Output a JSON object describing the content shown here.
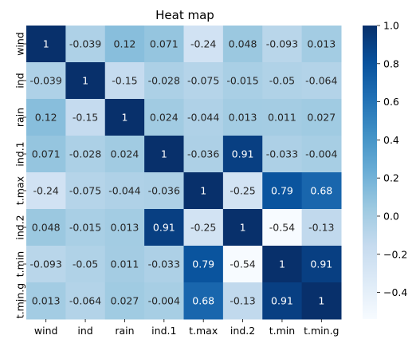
{
  "chart_data": {
    "type": "heatmap",
    "title": "Heat map",
    "xlabel": "",
    "ylabel": "",
    "x_categories": [
      "wind",
      "ind",
      "rain",
      "ind.1",
      "t.max",
      "ind.2",
      "t.min",
      "t.min.g"
    ],
    "y_categories": [
      "wind",
      "ind",
      "rain",
      "ind.1",
      "t.max",
      "ind.2",
      "t.min",
      "t.min.g"
    ],
    "values": [
      [
        1,
        -0.039,
        0.12,
        0.071,
        -0.24,
        0.048,
        -0.093,
        0.013
      ],
      [
        -0.039,
        1,
        -0.15,
        -0.028,
        -0.075,
        -0.015,
        -0.05,
        -0.064
      ],
      [
        0.12,
        -0.15,
        1,
        0.024,
        -0.044,
        0.013,
        0.011,
        0.027
      ],
      [
        0.071,
        -0.028,
        0.024,
        1,
        -0.036,
        0.91,
        -0.033,
        -0.004
      ],
      [
        -0.24,
        -0.075,
        -0.044,
        -0.036,
        1,
        -0.25,
        0.79,
        0.68
      ],
      [
        0.048,
        -0.015,
        0.013,
        0.91,
        -0.25,
        1,
        -0.54,
        -0.13
      ],
      [
        -0.093,
        -0.05,
        0.011,
        -0.033,
        0.79,
        -0.54,
        1,
        0.91
      ],
      [
        0.013,
        -0.064,
        0.027,
        -0.004,
        0.68,
        -0.13,
        0.91,
        1
      ]
    ],
    "labels": [
      [
        "1",
        "-0.039",
        "0.12",
        "0.071",
        "-0.24",
        "0.048",
        "-0.093",
        "0.013"
      ],
      [
        "-0.039",
        "1",
        "-0.15",
        "-0.028",
        "-0.075",
        "-0.015",
        "-0.05",
        "-0.064"
      ],
      [
        "0.12",
        "-0.15",
        "1",
        "0.024",
        "-0.044",
        "0.013",
        "0.011",
        "0.027"
      ],
      [
        "0.071",
        "-0.028",
        "0.024",
        "1",
        "-0.036",
        "0.91",
        "-0.033",
        "-0.004"
      ],
      [
        "-0.24",
        "-0.075",
        "-0.044",
        "-0.036",
        "1",
        "-0.25",
        "0.79",
        "0.68"
      ],
      [
        "0.048",
        "-0.015",
        "0.013",
        "0.91",
        "-0.25",
        "1",
        "-0.54",
        "-0.13"
      ],
      [
        "-0.093",
        "-0.05",
        "0.011",
        "-0.033",
        "0.79",
        "-0.54",
        "1",
        "0.91"
      ],
      [
        "0.013",
        "-0.064",
        "0.027",
        "-0.004",
        "0.68",
        "-0.13",
        "0.91",
        "1"
      ]
    ],
    "colormap": "Blues",
    "color_range": [
      -0.54,
      1
    ],
    "colorbar_ticks": [
      1.0,
      0.8,
      0.6,
      0.4,
      0.2,
      0.0,
      -0.2,
      -0.4
    ],
    "colorbar_tick_labels": [
      "1.0",
      "0.8",
      "0.6",
      "0.4",
      "0.2",
      "0.0",
      "−0.2",
      "−0.4"
    ],
    "colorbar_position": "right",
    "grid": false
  }
}
